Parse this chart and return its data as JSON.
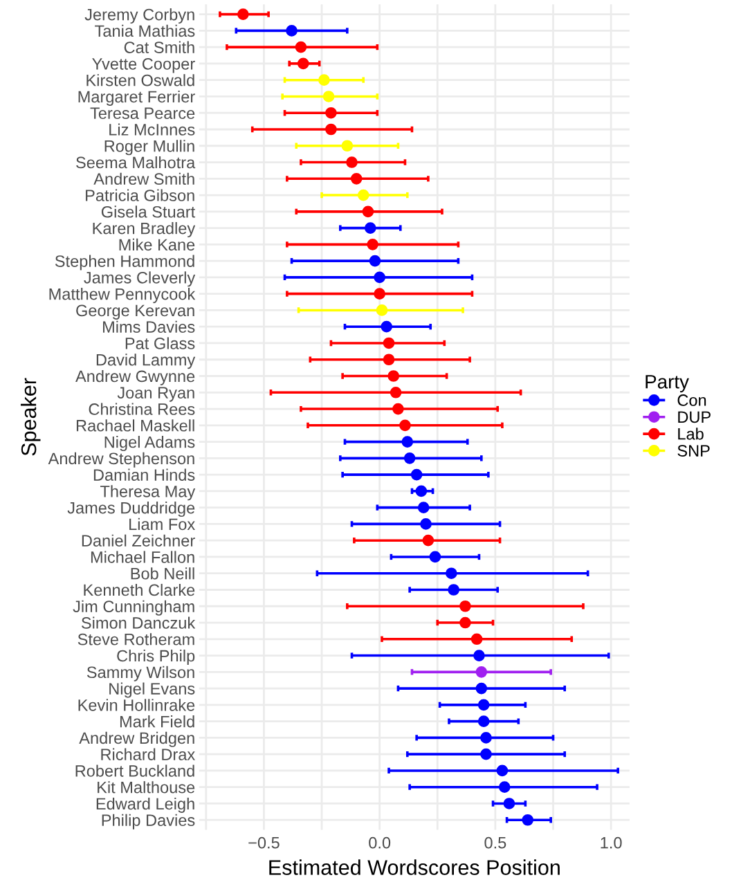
{
  "chart_data": {
    "type": "scatter",
    "orientation": "horizontal",
    "xlabel": "Estimated Wordscores Position",
    "ylabel": "Speaker",
    "legend_title": "Party",
    "legend": "right",
    "grid": true,
    "marker": "circle",
    "categories": [
      "Jeremy Corbyn",
      "Tania Mathias",
      "Cat Smith",
      "Yvette Cooper",
      "Kirsten Oswald",
      "Margaret Ferrier",
      "Teresa Pearce",
      "Liz McInnes",
      "Roger Mullin",
      "Seema Malhotra",
      "Andrew Smith",
      "Patricia Gibson",
      "Gisela Stuart",
      "Karen Bradley",
      "Mike Kane",
      "Stephen Hammond",
      "James Cleverly",
      "Matthew Pennycook",
      "George Kerevan",
      "Mims Davies",
      "Pat Glass",
      "David Lammy",
      "Andrew Gwynne",
      "Joan Ryan",
      "Christina Rees",
      "Rachael Maskell",
      "Nigel Adams",
      "Andrew Stephenson",
      "Damian Hinds",
      "Theresa May",
      "James Duddridge",
      "Liam Fox",
      "Daniel Zeichner",
      "Michael Fallon",
      "Bob Neill",
      "Kenneth Clarke",
      "Jim Cunningham",
      "Simon Danczuk",
      "Steve Rotheram",
      "Chris Philp",
      "Sammy Wilson",
      "Nigel Evans",
      "Kevin Hollinrake",
      "Mark Field",
      "Andrew Bridgen",
      "Richard Drax",
      "Robert Buckland",
      "Kit Malthouse",
      "Edward Leigh",
      "Philip Davies"
    ],
    "xlim": [
      -0.78,
      1.08
    ],
    "xticks": [
      {
        "value": -0.75,
        "label": null
      },
      {
        "value": -0.5,
        "label": "−0.5"
      },
      {
        "value": -0.25,
        "label": null
      },
      {
        "value": 0.0,
        "label": "0.0"
      },
      {
        "value": 0.25,
        "label": null
      },
      {
        "value": 0.5,
        "label": "0.5"
      },
      {
        "value": 0.75,
        "label": null
      },
      {
        "value": 1.0,
        "label": "1.0"
      }
    ],
    "series": [
      {
        "name": "Con",
        "color": "#0000ff",
        "values": [
          null,
          -0.38,
          null,
          null,
          null,
          null,
          null,
          null,
          null,
          null,
          null,
          null,
          null,
          -0.04,
          null,
          -0.02,
          0.0,
          null,
          null,
          0.03,
          null,
          null,
          null,
          null,
          null,
          null,
          0.12,
          0.13,
          0.16,
          0.18,
          0.19,
          0.2,
          null,
          0.24,
          0.31,
          0.32,
          null,
          null,
          null,
          0.43,
          null,
          0.44,
          0.45,
          0.45,
          0.46,
          0.46,
          0.53,
          0.54,
          0.56,
          0.64
        ],
        "errors": [
          null,
          [
            -0.62,
            -0.14
          ],
          null,
          null,
          null,
          null,
          null,
          null,
          null,
          null,
          null,
          null,
          null,
          [
            -0.17,
            0.09
          ],
          null,
          [
            -0.38,
            0.34
          ],
          [
            -0.41,
            0.4
          ],
          null,
          null,
          [
            -0.15,
            0.22
          ],
          null,
          null,
          null,
          null,
          null,
          null,
          [
            -0.15,
            0.38
          ],
          [
            -0.17,
            0.44
          ],
          [
            -0.16,
            0.47
          ],
          [
            0.14,
            0.23
          ],
          [
            -0.01,
            0.39
          ],
          [
            -0.12,
            0.52
          ],
          null,
          [
            0.05,
            0.43
          ],
          [
            -0.27,
            0.9
          ],
          [
            0.13,
            0.51
          ],
          null,
          null,
          null,
          [
            -0.12,
            0.99
          ],
          null,
          [
            0.08,
            0.8
          ],
          [
            0.26,
            0.63
          ],
          [
            0.3,
            0.6
          ],
          [
            0.16,
            0.75
          ],
          [
            0.12,
            0.8
          ],
          [
            0.04,
            1.03
          ],
          [
            0.13,
            0.94
          ],
          [
            0.49,
            0.63
          ],
          [
            0.55,
            0.74
          ]
        ]
      },
      {
        "name": "DUP",
        "color": "#a020f0",
        "values": [
          null,
          null,
          null,
          null,
          null,
          null,
          null,
          null,
          null,
          null,
          null,
          null,
          null,
          null,
          null,
          null,
          null,
          null,
          null,
          null,
          null,
          null,
          null,
          null,
          null,
          null,
          null,
          null,
          null,
          null,
          null,
          null,
          null,
          null,
          null,
          null,
          null,
          null,
          null,
          null,
          0.44,
          null,
          null,
          null,
          null,
          null,
          null,
          null,
          null,
          null
        ],
        "errors": [
          null,
          null,
          null,
          null,
          null,
          null,
          null,
          null,
          null,
          null,
          null,
          null,
          null,
          null,
          null,
          null,
          null,
          null,
          null,
          null,
          null,
          null,
          null,
          null,
          null,
          null,
          null,
          null,
          null,
          null,
          null,
          null,
          null,
          null,
          null,
          null,
          null,
          null,
          null,
          null,
          [
            0.14,
            0.74
          ],
          null,
          null,
          null,
          null,
          null,
          null,
          null,
          null,
          null
        ]
      },
      {
        "name": "Lab",
        "color": "#ff0000",
        "values": [
          -0.59,
          null,
          -0.34,
          -0.33,
          null,
          null,
          -0.21,
          -0.21,
          null,
          -0.12,
          -0.1,
          null,
          -0.05,
          null,
          -0.03,
          null,
          null,
          0.0,
          null,
          null,
          0.04,
          0.04,
          0.06,
          0.07,
          0.08,
          0.11,
          null,
          null,
          null,
          null,
          null,
          null,
          0.21,
          null,
          null,
          null,
          0.37,
          0.37,
          0.42,
          null,
          null,
          null,
          null,
          null,
          null,
          null,
          null,
          null,
          null,
          null
        ],
        "errors": [
          [
            -0.69,
            -0.48
          ],
          null,
          [
            -0.66,
            -0.01
          ],
          [
            -0.39,
            -0.26
          ],
          null,
          null,
          [
            -0.41,
            -0.01
          ],
          [
            -0.55,
            0.14
          ],
          null,
          [
            -0.34,
            0.11
          ],
          [
            -0.4,
            0.21
          ],
          null,
          [
            -0.36,
            0.27
          ],
          null,
          [
            -0.4,
            0.34
          ],
          null,
          null,
          [
            -0.4,
            0.4
          ],
          null,
          null,
          [
            -0.21,
            0.28
          ],
          [
            -0.3,
            0.39
          ],
          [
            -0.16,
            0.29
          ],
          [
            -0.47,
            0.61
          ],
          [
            -0.34,
            0.51
          ],
          [
            -0.31,
            0.53
          ],
          null,
          null,
          null,
          null,
          null,
          null,
          [
            -0.11,
            0.52
          ],
          null,
          null,
          null,
          [
            -0.14,
            0.88
          ],
          [
            0.25,
            0.49
          ],
          [
            0.01,
            0.83
          ],
          null,
          null,
          null,
          null,
          null,
          null,
          null,
          null,
          null,
          null,
          null
        ]
      },
      {
        "name": "SNP",
        "color": "#ffff00",
        "values": [
          null,
          null,
          null,
          null,
          -0.24,
          -0.22,
          null,
          null,
          -0.14,
          null,
          null,
          -0.07,
          null,
          null,
          null,
          null,
          null,
          null,
          0.01,
          null,
          null,
          null,
          null,
          null,
          null,
          null,
          null,
          null,
          null,
          null,
          null,
          null,
          null,
          null,
          null,
          null,
          null,
          null,
          null,
          null,
          null,
          null,
          null,
          null,
          null,
          null,
          null,
          null,
          null,
          null
        ],
        "errors": [
          null,
          null,
          null,
          null,
          [
            -0.41,
            -0.07
          ],
          [
            -0.42,
            -0.01
          ],
          null,
          null,
          [
            -0.36,
            0.08
          ],
          null,
          null,
          [
            -0.25,
            0.12
          ],
          null,
          null,
          null,
          null,
          null,
          null,
          [
            -0.35,
            0.36
          ],
          null,
          null,
          null,
          null,
          null,
          null,
          null,
          null,
          null,
          null,
          null,
          null,
          null,
          null,
          null,
          null,
          null,
          null,
          null,
          null,
          null,
          null,
          null,
          null,
          null,
          null,
          null,
          null,
          null,
          null,
          null
        ]
      }
    ]
  }
}
